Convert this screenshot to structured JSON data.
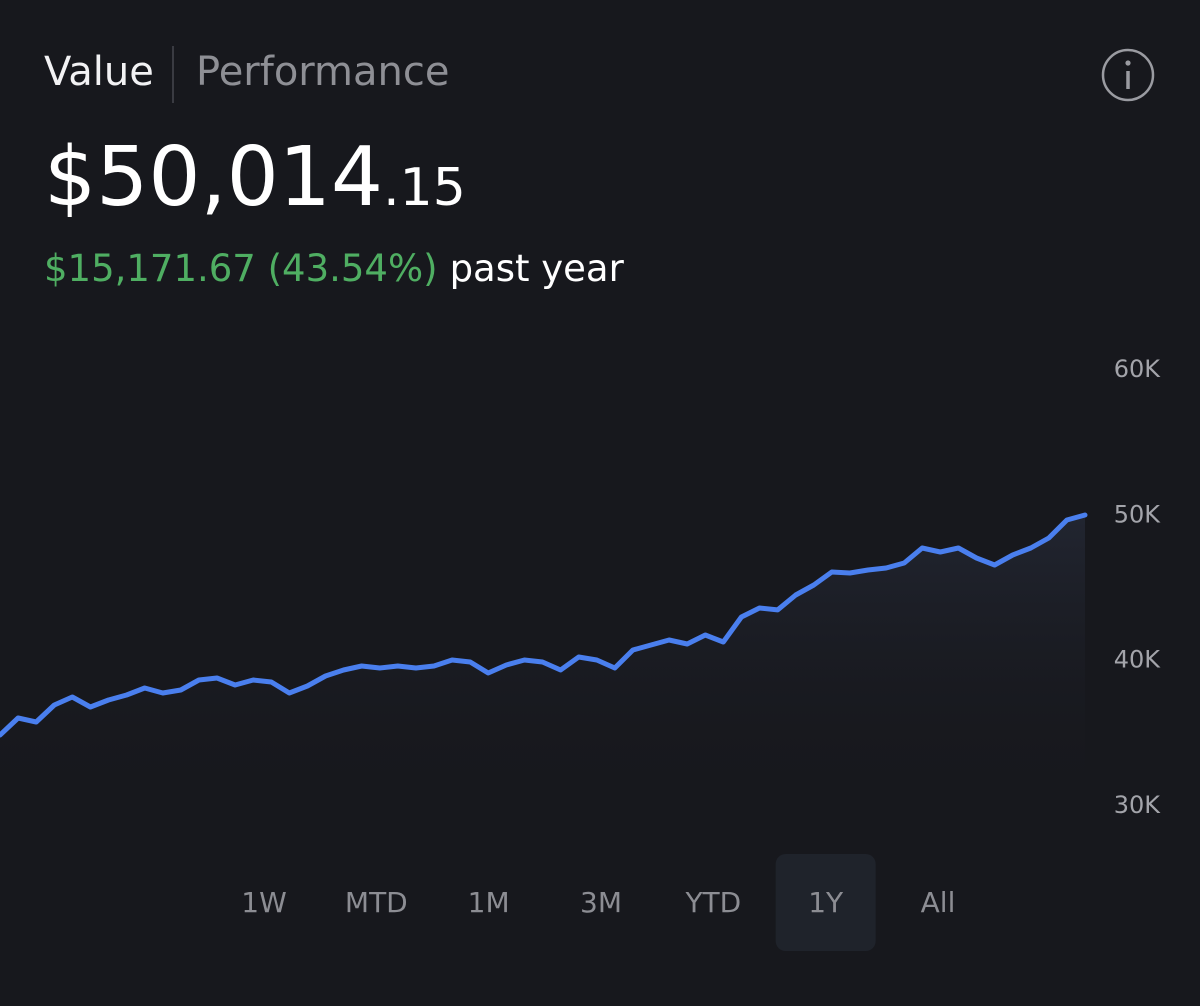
{
  "tabs": [
    "Value",
    "Performance"
  ],
  "value": {
    "whole": "$50,014",
    "cents": ".15"
  },
  "change": {
    "amount": "$15,171.67 (43.54%)",
    "period": "past year"
  },
  "chart_data": {
    "type": "line",
    "color": "#4a7fee",
    "grid": false,
    "values": [
      34885,
      36055,
      35780,
      36950,
      37500,
      36810,
      37295,
      37640,
      38120,
      37775,
      37980,
      38670,
      38810,
      38325,
      38670,
      38530,
      37775,
      38260,
      38945,
      39360,
      39630,
      39495,
      39630,
      39495,
      39630,
      40045,
      39910,
      39150,
      39700,
      40045,
      39910,
      39360,
      40250,
      40045,
      39495,
      40735,
      41080,
      41420,
      41145,
      41765,
      41285,
      43005,
      43625,
      43490,
      44520,
      45205,
      46100,
      46030,
      46240,
      46375,
      46720,
      47750,
      47475,
      47750,
      47065,
      46580,
      47270,
      47750,
      48440,
      49680,
      50020
    ],
    "ylim": [
      30000,
      60000
    ],
    "yticks": [
      {
        "value": 30000,
        "label": "30K"
      },
      {
        "value": 40000,
        "label": "40K"
      },
      {
        "value": 50000,
        "label": "50K"
      },
      {
        "value": 60000,
        "label": "60K"
      }
    ]
  },
  "ranges": [
    "1W",
    "MTD",
    "1M",
    "3M",
    "YTD",
    "1Y",
    "All"
  ],
  "selected_range_index": 5
}
